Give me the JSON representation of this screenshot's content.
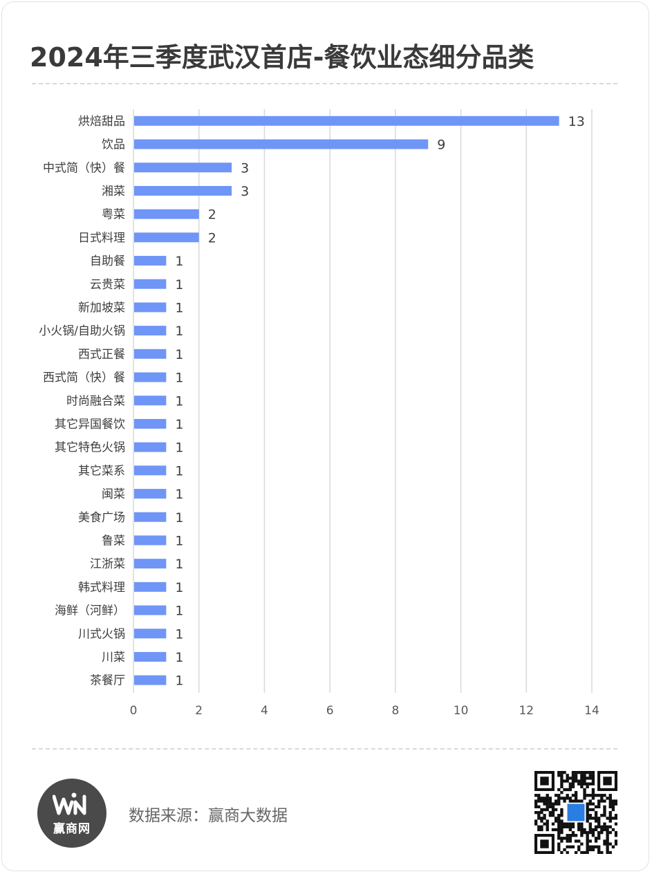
{
  "page": {
    "title": "2024年三季度武汉首店-餐饮业态细分品类",
    "source_text": "数据来源：赢商大数据",
    "logo_text": "赢商网"
  },
  "colors": {
    "bar": "#6f95f7",
    "grid": "#d9d9d9",
    "text": "#3d3d3d",
    "axis_text": "#595959"
  },
  "chart_data": {
    "type": "bar",
    "orientation": "horizontal",
    "title": "2024年三季度武汉首店-餐饮业态细分品类",
    "categories": [
      "烘焙甜品",
      "饮品",
      "中式简（快）餐",
      "湘菜",
      "粤菜",
      "日式料理",
      "自助餐",
      "云贵菜",
      "新加坡菜",
      "小火锅/自助火锅",
      "西式正餐",
      "西式简（快）餐",
      "时尚融合菜",
      "其它异国餐饮",
      "其它特色火锅",
      "其它菜系",
      "闽菜",
      "美食广场",
      "鲁菜",
      "江浙菜",
      "韩式料理",
      "海鲜（河鲜）",
      "川式火锅",
      "川菜",
      "茶餐厅"
    ],
    "values": [
      13,
      9,
      3,
      3,
      2,
      2,
      1,
      1,
      1,
      1,
      1,
      1,
      1,
      1,
      1,
      1,
      1,
      1,
      1,
      1,
      1,
      1,
      1,
      1,
      1
    ],
    "xlim": [
      0,
      14
    ],
    "xticks": [
      0,
      2,
      4,
      6,
      8,
      10,
      12,
      14
    ],
    "xlabel": "",
    "ylabel": "",
    "grid": true,
    "data_labels": true
  }
}
